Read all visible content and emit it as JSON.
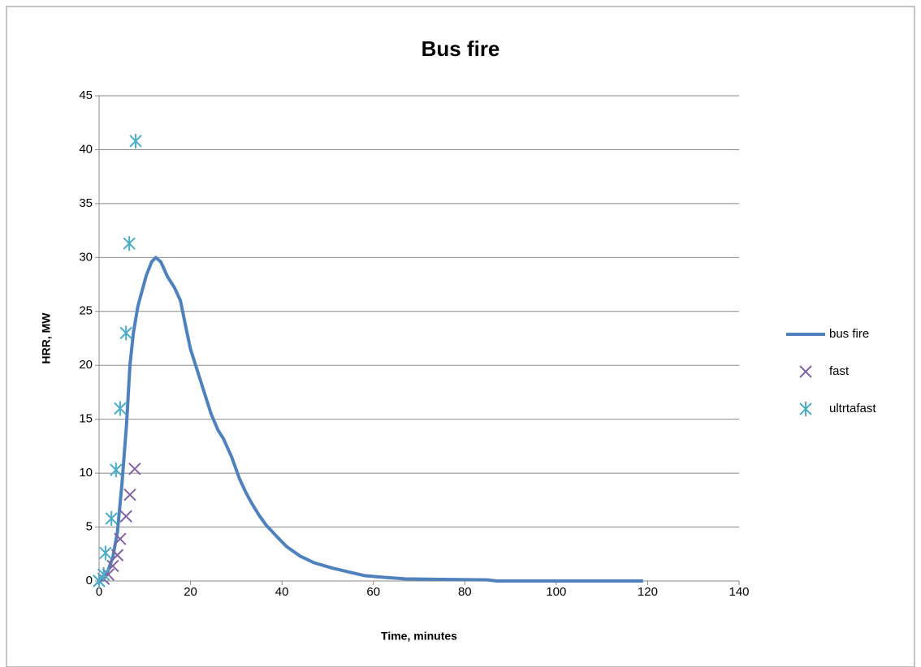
{
  "chart_data": {
    "type": "line-scatter",
    "title": "Bus fire",
    "x_label": "Time, minutes",
    "y_label": "HRR, MW",
    "xlim": [
      0,
      140
    ],
    "xticks": [
      0,
      20,
      40,
      60,
      80,
      100,
      120,
      140
    ],
    "ylim": [
      0,
      45
    ],
    "yticks": [
      0,
      5,
      10,
      15,
      20,
      25,
      30,
      35,
      40,
      45
    ],
    "grid": true,
    "legend": "right",
    "series": [
      {
        "name": "bus fire",
        "type": "line",
        "color": "#4f81bd",
        "x": [
          0,
          1,
          2,
          3,
          4,
          5,
          6,
          6.75,
          7.5,
          8.5,
          10.3,
          11.5,
          12.4,
          13.5,
          15,
          16.5,
          17.8,
          19,
          20,
          21.5,
          23,
          24.5,
          26,
          27.2,
          29,
          30.7,
          32,
          33.4,
          35,
          36.5,
          38.7,
          41,
          44,
          47,
          51,
          54,
          58,
          62,
          67,
          75,
          85,
          87,
          100,
          110,
          119
        ],
        "y": [
          0,
          0.3,
          1,
          2.2,
          4.5,
          9,
          14.5,
          20,
          23,
          25.5,
          28.3,
          29.6,
          30,
          29.6,
          28.2,
          27.2,
          26,
          23.5,
          21.5,
          19.5,
          17.5,
          15.5,
          14,
          13.2,
          11.5,
          9.5,
          8.3,
          7.2,
          6.1,
          5.2,
          4.2,
          3.2,
          2.3,
          1.7,
          1.2,
          0.9,
          0.5,
          0.35,
          0.2,
          0.15,
          0.1,
          0,
          0,
          0,
          0
        ]
      },
      {
        "name": "fast",
        "type": "scatter",
        "marker": "x",
        "color": "#8064a2",
        "x": [
          0,
          1,
          2,
          3,
          4,
          4.6,
          5.9,
          6.75,
          7.8
        ],
        "y": [
          0,
          0.2,
          0.6,
          1.4,
          2.4,
          3.9,
          6,
          8,
          10.4
        ]
      },
      {
        "name": "ultrtafast",
        "type": "scatter",
        "marker": "star",
        "color": "#4bacc6",
        "x": [
          0,
          1,
          1.4,
          2.7,
          3.7,
          4.6,
          5.9,
          6.6,
          8
        ],
        "y": [
          0,
          0.6,
          2.6,
          5.8,
          10.3,
          16,
          23,
          31.3,
          40.8
        ]
      }
    ]
  }
}
